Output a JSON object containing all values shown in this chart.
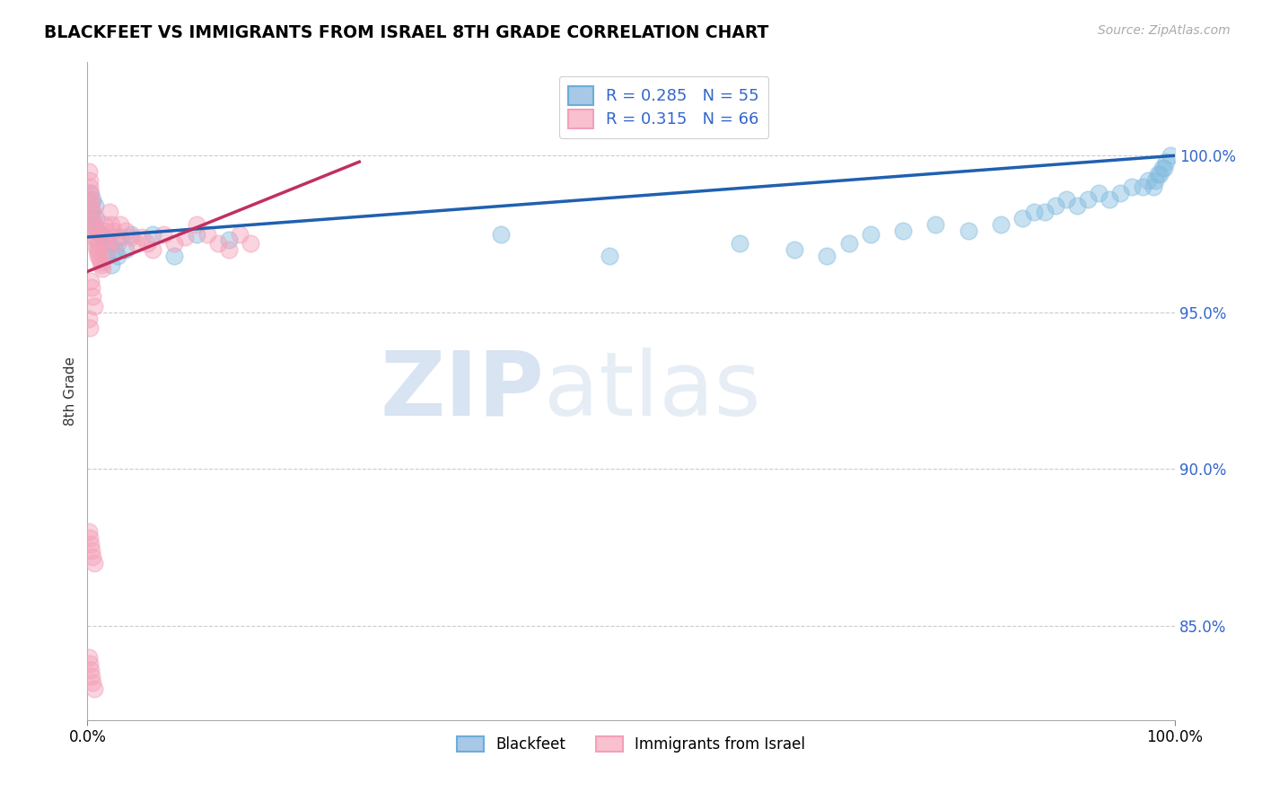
{
  "title": "BLACKFEET VS IMMIGRANTS FROM ISRAEL 8TH GRADE CORRELATION CHART",
  "source_text": "Source: ZipAtlas.com",
  "ylabel": "8th Grade",
  "xlim": [
    0,
    1.0
  ],
  "ylim": [
    0.82,
    1.03
  ],
  "ytick_labels": [
    "85.0%",
    "90.0%",
    "95.0%",
    "100.0%"
  ],
  "ytick_positions": [
    0.85,
    0.9,
    0.95,
    1.0
  ],
  "legend_label_1": "Blackfeet",
  "legend_label_2": "Immigrants from Israel",
  "r1": 0.285,
  "n1": 55,
  "r2": 0.315,
  "n2": 66,
  "color_blue": "#85bde0",
  "color_pink": "#f4a0b8",
  "color_blue_line": "#2060b0",
  "color_pink_line": "#c03060",
  "watermark_zip": "ZIP",
  "watermark_atlas": "atlas",
  "blue_x": [
    0.002,
    0.003,
    0.004,
    0.005,
    0.006,
    0.007,
    0.008,
    0.009,
    0.01,
    0.012,
    0.015,
    0.018,
    0.02,
    0.022,
    0.025,
    0.028,
    0.03,
    0.035,
    0.04,
    0.06,
    0.08,
    0.1,
    0.13,
    0.38,
    0.48,
    0.6,
    0.65,
    0.68,
    0.7,
    0.72,
    0.75,
    0.78,
    0.81,
    0.84,
    0.86,
    0.87,
    0.88,
    0.89,
    0.9,
    0.91,
    0.92,
    0.93,
    0.94,
    0.95,
    0.96,
    0.97,
    0.975,
    0.98,
    0.982,
    0.984,
    0.986,
    0.988,
    0.99,
    0.992,
    0.996
  ],
  "blue_y": [
    0.988,
    0.982,
    0.98,
    0.986,
    0.978,
    0.984,
    0.98,
    0.976,
    0.972,
    0.975,
    0.974,
    0.968,
    0.972,
    0.965,
    0.97,
    0.968,
    0.974,
    0.97,
    0.975,
    0.975,
    0.968,
    0.975,
    0.973,
    0.975,
    0.968,
    0.972,
    0.97,
    0.968,
    0.972,
    0.975,
    0.976,
    0.978,
    0.976,
    0.978,
    0.98,
    0.982,
    0.982,
    0.984,
    0.986,
    0.984,
    0.986,
    0.988,
    0.986,
    0.988,
    0.99,
    0.99,
    0.992,
    0.99,
    0.992,
    0.994,
    0.994,
    0.996,
    0.996,
    0.998,
    1.0
  ],
  "pink_x": [
    0.001,
    0.002,
    0.002,
    0.003,
    0.003,
    0.004,
    0.004,
    0.005,
    0.005,
    0.006,
    0.006,
    0.007,
    0.007,
    0.008,
    0.008,
    0.009,
    0.01,
    0.01,
    0.011,
    0.012,
    0.013,
    0.014,
    0.015,
    0.016,
    0.017,
    0.018,
    0.019,
    0.02,
    0.022,
    0.024,
    0.026,
    0.028,
    0.03,
    0.035,
    0.04,
    0.045,
    0.05,
    0.055,
    0.06,
    0.07,
    0.08,
    0.09,
    0.1,
    0.11,
    0.12,
    0.13,
    0.14,
    0.15,
    0.003,
    0.004,
    0.005,
    0.006,
    0.001,
    0.002,
    0.001,
    0.002,
    0.003,
    0.004,
    0.005,
    0.006,
    0.001,
    0.002,
    0.003,
    0.004,
    0.005,
    0.006
  ],
  "pink_y": [
    0.995,
    0.992,
    0.99,
    0.988,
    0.986,
    0.985,
    0.983,
    0.982,
    0.98,
    0.978,
    0.977,
    0.976,
    0.974,
    0.973,
    0.971,
    0.97,
    0.969,
    0.968,
    0.967,
    0.966,
    0.965,
    0.964,
    0.978,
    0.976,
    0.974,
    0.972,
    0.97,
    0.982,
    0.978,
    0.976,
    0.974,
    0.972,
    0.978,
    0.976,
    0.974,
    0.972,
    0.974,
    0.972,
    0.97,
    0.975,
    0.972,
    0.974,
    0.978,
    0.975,
    0.972,
    0.97,
    0.975,
    0.972,
    0.96,
    0.958,
    0.955,
    0.952,
    0.948,
    0.945,
    0.88,
    0.878,
    0.876,
    0.874,
    0.872,
    0.87,
    0.84,
    0.838,
    0.836,
    0.834,
    0.832,
    0.83
  ]
}
